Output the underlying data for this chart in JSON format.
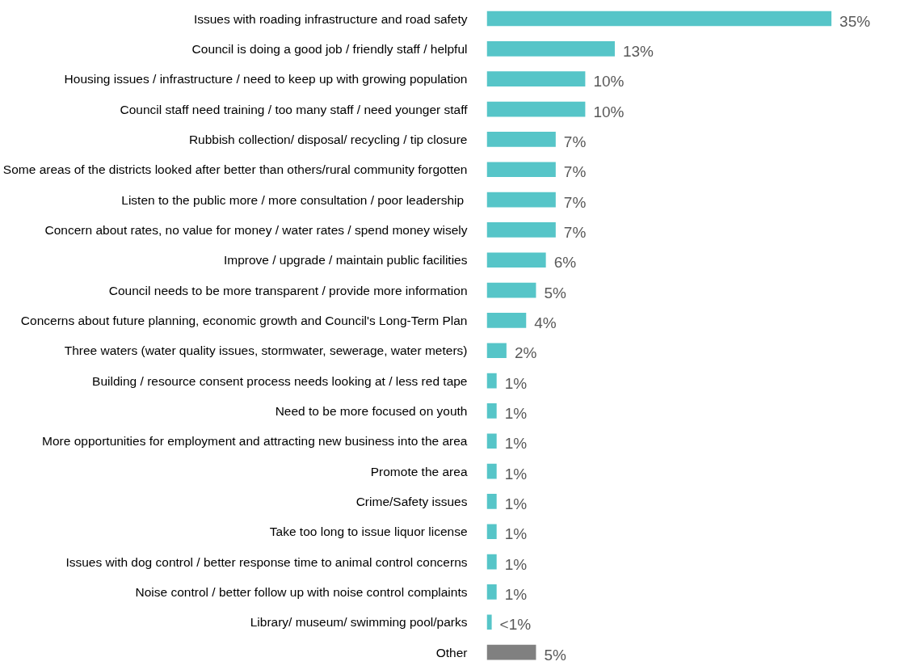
{
  "chart_data": {
    "type": "bar",
    "orientation": "horizontal",
    "categories": [
      "Issues with roading infrastructure and road safety",
      "Council is doing a good job / friendly staff / helpful",
      "Housing issues / infrastructure / need to keep up with growing population",
      "Council staff need training / too many staff / need younger staff",
      "Rubbish collection/ disposal/ recycling / tip closure",
      "Some areas of the districts looked after better than others/rural community forgotten",
      "Listen to the public more /  more consultation / poor leadership",
      "Concern about rates, no value for money / water rates / spend money wisely",
      "Improve / upgrade / maintain public facilities",
      "Council needs to be more transparent / provide more information",
      "Concerns about future planning, economic growth and Council's Long-Term Plan",
      "Three waters (water quality issues, stormwater, sewerage, water meters)",
      "Building / resource consent process needs looking at / less red tape",
      "Need to be more focused on youth",
      "More opportunities for employment and attracting new business into the area",
      "Promote the area",
      "Crime/Safety issues",
      "Take too long to issue liquor license",
      "Issues with dog control / better response time to animal control concerns",
      "Noise control / better follow up with noise control complaints",
      "Library/ museum/ swimming pool/parks",
      "Other"
    ],
    "values": [
      35,
      13,
      10,
      10,
      7,
      7,
      7,
      7,
      6,
      5,
      4,
      2,
      1,
      1,
      1,
      1,
      1,
      1,
      1,
      1,
      0.5,
      5
    ],
    "value_labels": [
      "35%",
      "13%",
      "10%",
      "10%",
      "7%",
      "7%",
      "7%",
      "7%",
      "6%",
      "5%",
      "4%",
      "2%",
      "1%",
      "1%",
      "1%",
      "1%",
      "1%",
      "1%",
      "1%",
      "1%",
      "<1%",
      "5%"
    ],
    "colors": [
      "#56c5c8",
      "#56c5c8",
      "#56c5c8",
      "#56c5c8",
      "#56c5c8",
      "#56c5c8",
      "#56c5c8",
      "#56c5c8",
      "#56c5c8",
      "#56c5c8",
      "#56c5c8",
      "#56c5c8",
      "#56c5c8",
      "#56c5c8",
      "#56c5c8",
      "#56c5c8",
      "#56c5c8",
      "#56c5c8",
      "#56c5c8",
      "#56c5c8",
      "#56c5c8",
      "#808080"
    ],
    "grid": false
  }
}
